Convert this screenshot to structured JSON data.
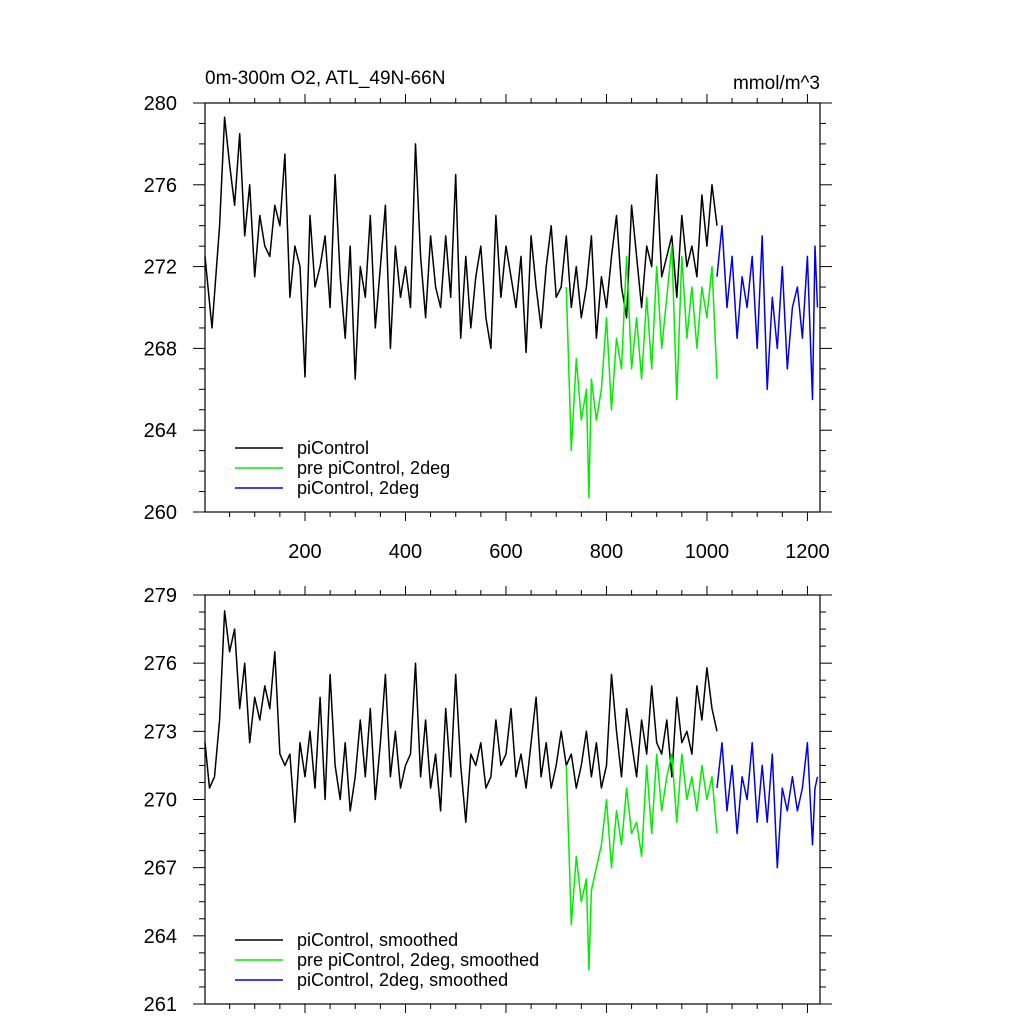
{
  "chart_data": [
    {
      "type": "line",
      "title": "0m-300m O2, ATL_49N-66N",
      "units": "mmol/m^3",
      "xlim": [
        1,
        1225
      ],
      "ylim": [
        260,
        280
      ],
      "xticks": [
        200,
        400,
        600,
        800,
        1000,
        1200
      ],
      "xtick_labels": [
        "200",
        "400",
        "600",
        "800",
        "1000",
        "1200"
      ],
      "yticks": [
        260,
        264,
        268,
        272,
        276,
        280
      ],
      "ytick_labels": [
        "260",
        "264",
        "268",
        "272",
        "276",
        "280"
      ],
      "grid": false,
      "legend_position": "bottom-left",
      "series": [
        {
          "name": "piControl",
          "color": "#000000",
          "x": [
            1,
            15,
            30,
            40,
            50,
            60,
            70,
            80,
            90,
            100,
            110,
            120,
            130,
            140,
            150,
            160,
            170,
            180,
            190,
            200,
            210,
            220,
            230,
            240,
            250,
            260,
            270,
            280,
            290,
            300,
            310,
            320,
            330,
            340,
            350,
            360,
            370,
            380,
            390,
            400,
            410,
            420,
            430,
            440,
            450,
            460,
            470,
            480,
            490,
            500,
            510,
            520,
            530,
            540,
            550,
            560,
            570,
            580,
            590,
            600,
            610,
            620,
            630,
            640,
            650,
            660,
            670,
            680,
            690,
            700,
            710,
            720,
            730,
            740,
            750,
            760,
            770,
            780,
            790,
            800,
            810,
            820,
            830,
            840,
            850,
            860,
            870,
            880,
            890,
            900,
            910,
            920,
            930,
            940,
            950,
            960,
            970,
            980,
            990,
            1000,
            1010,
            1020
          ],
          "y": [
            272.5,
            269.0,
            274.0,
            279.3,
            277.0,
            275.0,
            278.5,
            273.5,
            276.0,
            271.5,
            274.5,
            273.0,
            272.5,
            275.0,
            274.0,
            277.5,
            270.5,
            273.0,
            272.0,
            266.6,
            274.5,
            271.0,
            272.0,
            273.5,
            270.0,
            276.5,
            271.5,
            268.5,
            273.0,
            266.5,
            272.0,
            270.5,
            274.5,
            269.0,
            272.0,
            275.0,
            268.0,
            273.0,
            270.5,
            272.0,
            270.0,
            278.0,
            272.5,
            269.5,
            273.5,
            271.0,
            270.0,
            273.5,
            270.5,
            276.5,
            268.5,
            272.5,
            269.0,
            271.5,
            273.0,
            269.5,
            268.0,
            274.5,
            270.5,
            273.0,
            271.5,
            270.0,
            272.5,
            267.8,
            273.5,
            271.0,
            269.0,
            272.0,
            274.0,
            270.5,
            271.0,
            273.5,
            270.0,
            272.0,
            269.5,
            271.0,
            273.5,
            268.5,
            271.5,
            270.0,
            272.5,
            274.5,
            271.0,
            269.5,
            275.0,
            272.5,
            270.0,
            273.0,
            272.0,
            276.5,
            271.5,
            272.5,
            273.5,
            270.5,
            274.5,
            272.0,
            273.0,
            271.5,
            275.5,
            273.0,
            276.0,
            274.0
          ]
        },
        {
          "name": "pre piControl, 2deg",
          "color": "#00ee00",
          "x": [
            720,
            730,
            740,
            750,
            760,
            765,
            770,
            780,
            790,
            800,
            810,
            820,
            830,
            840,
            850,
            860,
            870,
            880,
            890,
            900,
            910,
            920,
            930,
            940,
            950,
            960,
            970,
            980,
            990,
            1000,
            1010,
            1020
          ],
          "y": [
            271.0,
            263.0,
            267.5,
            264.5,
            266.0,
            260.7,
            266.5,
            264.5,
            266.0,
            269.5,
            265.0,
            268.5,
            267.0,
            272.5,
            267.0,
            269.5,
            266.5,
            270.5,
            267.0,
            272.0,
            268.0,
            270.5,
            273.0,
            265.5,
            272.5,
            268.5,
            271.0,
            268.0,
            271.0,
            269.5,
            272.0,
            266.5
          ]
        },
        {
          "name": "piControl, 2deg",
          "color": "#0000ee",
          "x": [
            1020,
            1030,
            1040,
            1050,
            1060,
            1070,
            1080,
            1090,
            1100,
            1110,
            1120,
            1130,
            1140,
            1150,
            1160,
            1170,
            1180,
            1190,
            1200,
            1210,
            1215,
            1220
          ],
          "y": [
            271.5,
            274.0,
            270.0,
            272.5,
            268.5,
            271.5,
            270.0,
            272.5,
            268.0,
            273.5,
            266.0,
            270.5,
            268.0,
            272.0,
            267.0,
            270.0,
            271.0,
            268.5,
            272.5,
            265.5,
            273.0,
            270.0
          ]
        }
      ],
      "legend": [
        "piControl",
        "pre piControl, 2deg",
        "piControl, 2deg"
      ]
    },
    {
      "type": "line",
      "title": "",
      "xlim": [
        1,
        1225
      ],
      "ylim": [
        261,
        279
      ],
      "yticks": [
        261,
        264,
        267,
        270,
        273,
        276,
        279
      ],
      "ytick_labels": [
        "261",
        "264",
        "267",
        "270",
        "273",
        "276",
        "279"
      ],
      "grid": false,
      "legend_position": "bottom-left",
      "series": [
        {
          "name": "piControl, smoothed",
          "color": "#000000",
          "x": [
            1,
            10,
            20,
            30,
            40,
            50,
            60,
            70,
            80,
            90,
            100,
            110,
            120,
            130,
            140,
            150,
            160,
            170,
            180,
            190,
            200,
            210,
            220,
            230,
            240,
            250,
            260,
            270,
            280,
            290,
            300,
            310,
            320,
            330,
            340,
            350,
            360,
            370,
            380,
            390,
            400,
            410,
            420,
            430,
            440,
            450,
            460,
            470,
            480,
            490,
            500,
            510,
            520,
            530,
            540,
            550,
            560,
            570,
            580,
            590,
            600,
            610,
            620,
            630,
            640,
            650,
            660,
            670,
            680,
            690,
            700,
            710,
            720,
            730,
            740,
            750,
            760,
            770,
            780,
            790,
            800,
            810,
            820,
            830,
            840,
            850,
            860,
            870,
            880,
            890,
            900,
            910,
            920,
            930,
            940,
            950,
            960,
            970,
            980,
            990,
            1000,
            1010,
            1020
          ],
          "y": [
            272.5,
            270.5,
            271.0,
            273.5,
            278.3,
            276.5,
            277.5,
            274.0,
            276.0,
            272.5,
            274.5,
            273.5,
            275.0,
            274.0,
            276.5,
            272.0,
            271.5,
            272.0,
            269.0,
            272.5,
            271.0,
            273.0,
            270.5,
            274.5,
            270.0,
            275.5,
            271.5,
            270.0,
            272.5,
            269.5,
            271.0,
            273.5,
            271.0,
            274.0,
            270.0,
            272.5,
            275.5,
            271.0,
            273.0,
            270.5,
            271.5,
            272.0,
            276.0,
            271.0,
            273.5,
            270.5,
            272.0,
            269.5,
            274.0,
            271.0,
            275.5,
            271.5,
            269.0,
            272.0,
            271.5,
            272.5,
            270.5,
            271.0,
            273.5,
            271.5,
            272.0,
            274.0,
            271.0,
            272.0,
            270.5,
            272.5,
            274.5,
            271.0,
            272.5,
            270.5,
            271.5,
            273.0,
            271.5,
            272.0,
            270.5,
            271.5,
            273.0,
            271.0,
            272.5,
            270.5,
            271.5,
            275.5,
            273.0,
            271.0,
            274.0,
            272.5,
            271.0,
            273.5,
            272.0,
            275.0,
            272.5,
            272.0,
            273.5,
            271.0,
            274.5,
            272.5,
            273.0,
            272.0,
            275.0,
            273.5,
            275.8,
            274.0,
            273.0
          ]
        },
        {
          "name": "pre piControl, 2deg, smoothed",
          "color": "#00ee00",
          "x": [
            720,
            730,
            740,
            750,
            760,
            765,
            770,
            780,
            790,
            800,
            810,
            820,
            830,
            840,
            850,
            860,
            870,
            880,
            890,
            900,
            910,
            920,
            930,
            940,
            950,
            960,
            970,
            980,
            990,
            1000,
            1010,
            1020
          ],
          "y": [
            271.5,
            264.5,
            267.5,
            265.5,
            266.5,
            262.5,
            266.0,
            267.0,
            268.0,
            270.0,
            267.0,
            269.5,
            268.0,
            270.5,
            268.5,
            269.0,
            267.5,
            271.5,
            268.5,
            272.0,
            269.5,
            271.0,
            272.0,
            269.0,
            272.0,
            270.0,
            271.0,
            269.5,
            271.5,
            270.0,
            271.0,
            268.5
          ]
        },
        {
          "name": "piControl, 2deg, smoothed",
          "color": "#0000ee",
          "x": [
            1020,
            1030,
            1040,
            1050,
            1060,
            1070,
            1080,
            1090,
            1100,
            1110,
            1120,
            1130,
            1140,
            1150,
            1160,
            1170,
            1180,
            1190,
            1200,
            1210,
            1215,
            1220
          ],
          "y": [
            270.5,
            272.5,
            269.5,
            271.5,
            268.5,
            271.0,
            270.0,
            272.5,
            269.0,
            271.5,
            269.0,
            272.0,
            267.0,
            270.5,
            269.5,
            271.0,
            269.5,
            270.5,
            272.5,
            268.0,
            270.5,
            271.0
          ]
        }
      ],
      "legend": [
        "piControl, smoothed",
        "pre piControl, 2deg, smoothed",
        "piControl, 2deg, smoothed"
      ]
    }
  ]
}
